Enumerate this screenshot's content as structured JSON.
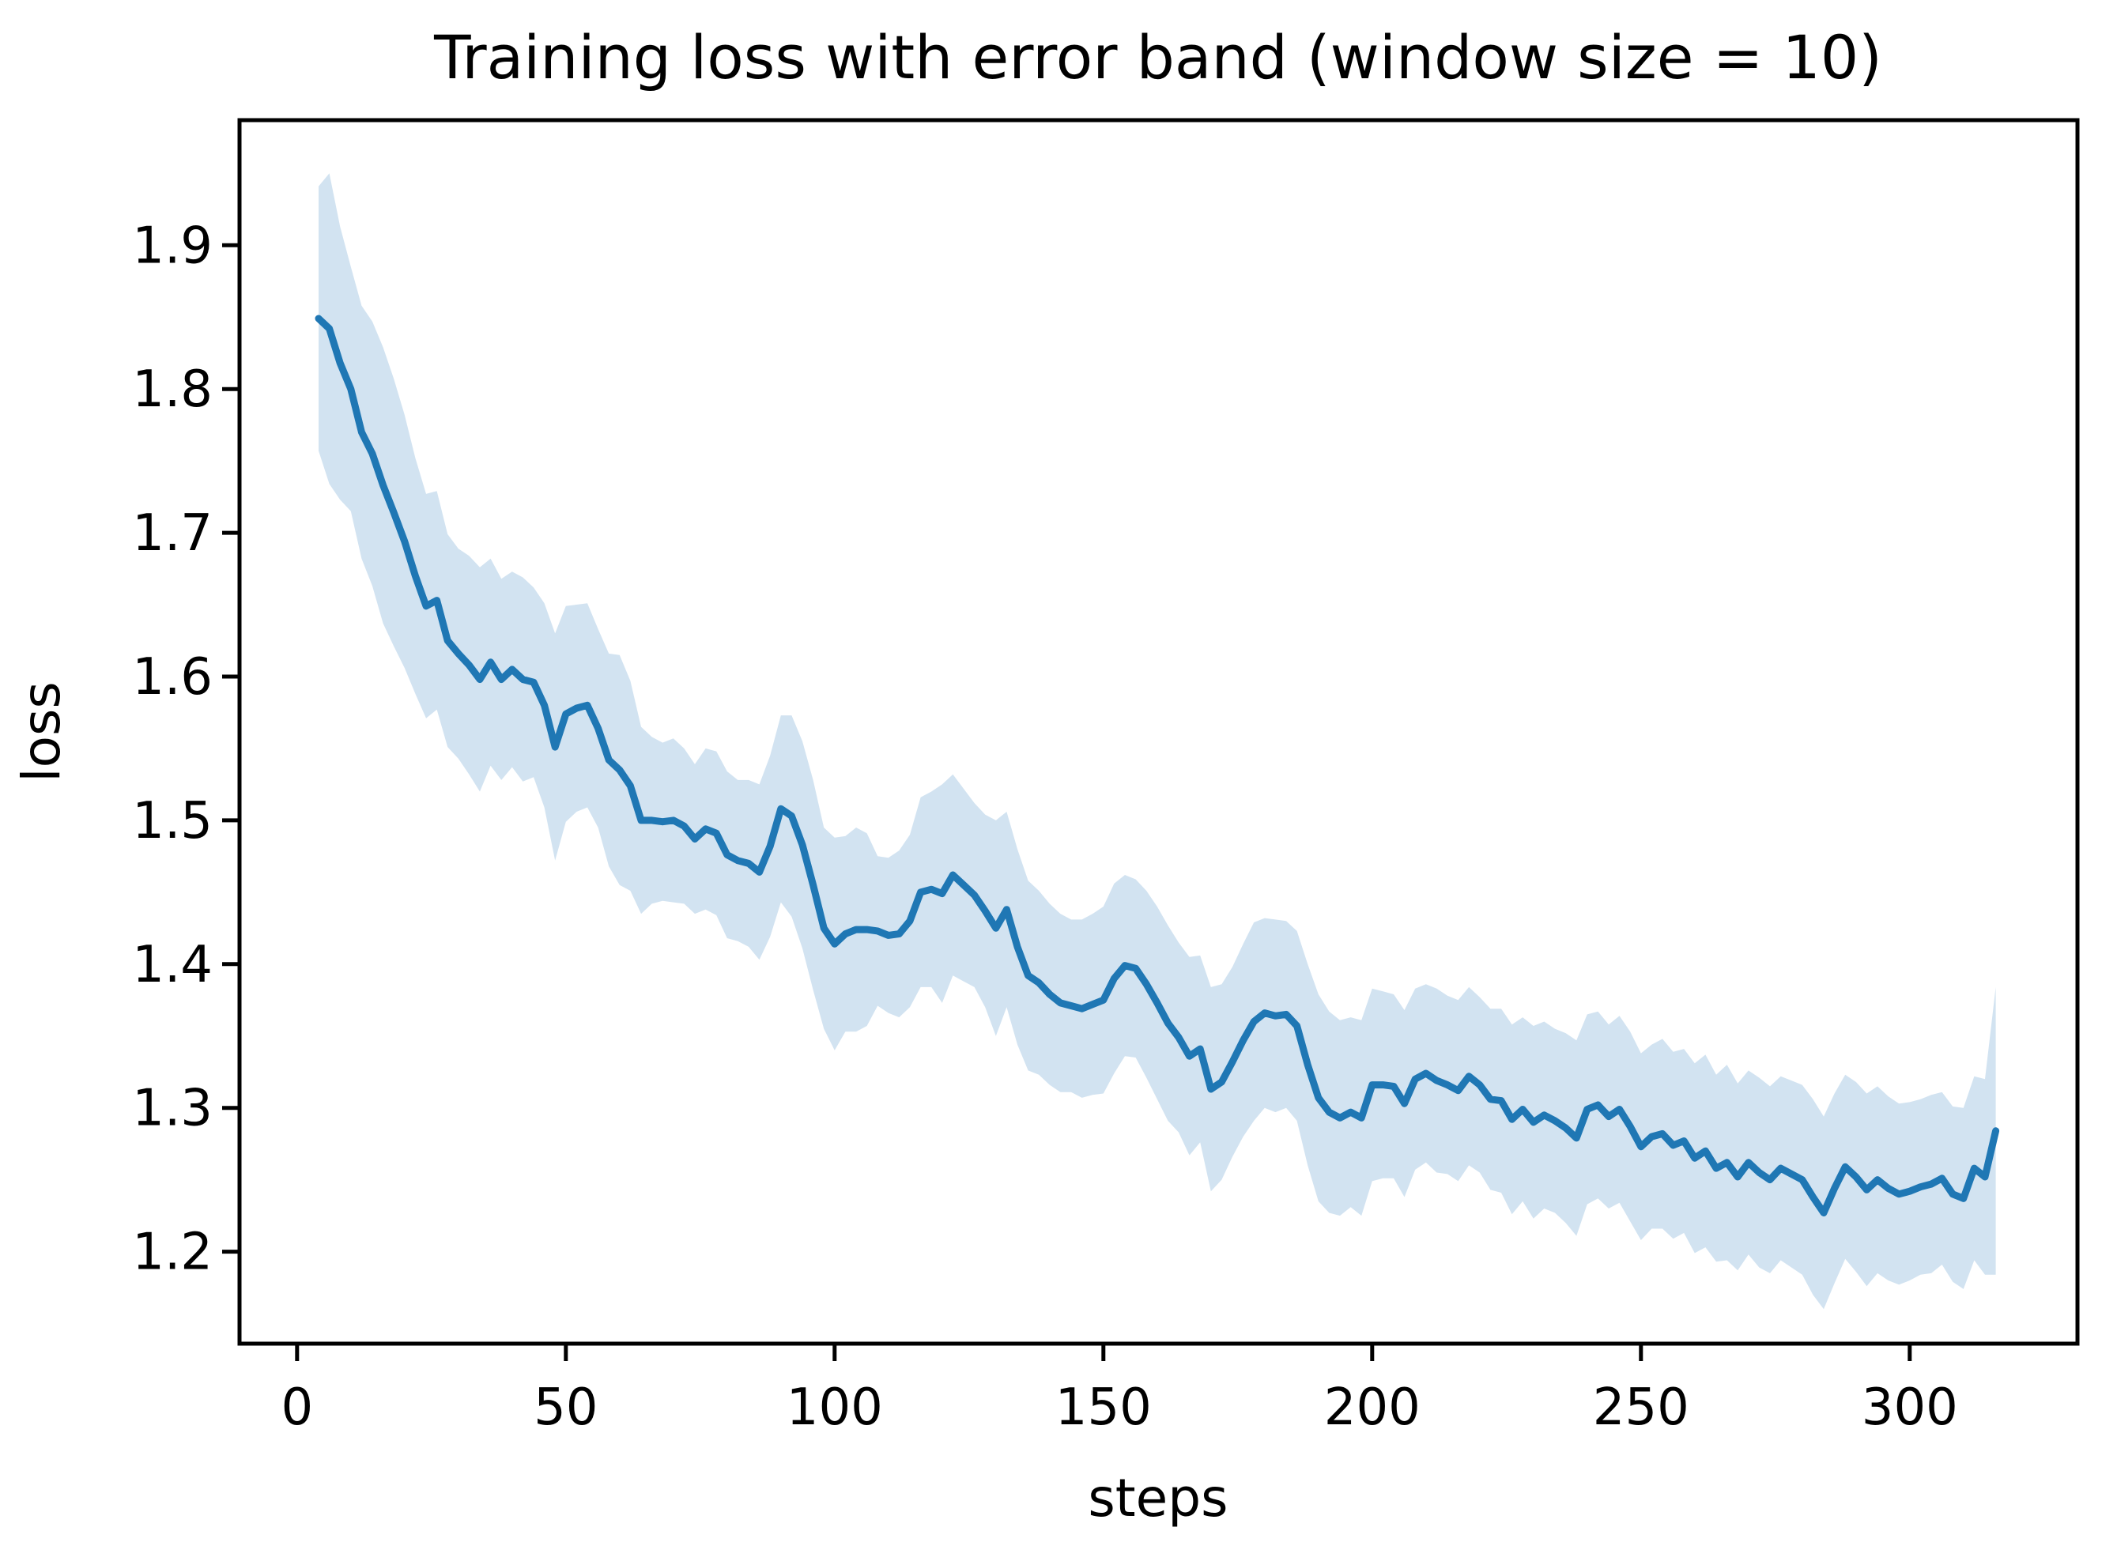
{
  "figure": {
    "title": "Training loss with error band (window size = 10)",
    "xlabel": "steps",
    "ylabel": "loss"
  },
  "chart_data": {
    "type": "line",
    "title": "Training loss with error band (window size = 10)",
    "xlabel": "steps",
    "ylabel": "loss",
    "grid": false,
    "legend": false,
    "line_color": "#1f77b4",
    "band_fill_color": "#d2e3f1",
    "band_meaning": "rolling mean ± 1 std, window size 10",
    "xlim": [
      -10.7,
      331.2
    ],
    "ylim": [
      1.136,
      1.987
    ],
    "xticks": [
      0,
      50,
      100,
      150,
      200,
      250,
      300
    ],
    "yticks": [
      1.2,
      1.3,
      1.4,
      1.5,
      1.6,
      1.7,
      1.8,
      1.9
    ],
    "x": [
      4,
      6,
      8,
      10,
      12,
      14,
      16,
      18,
      20,
      22,
      24,
      26,
      28,
      30,
      32,
      34,
      36,
      38,
      40,
      42,
      44,
      46,
      48,
      50,
      52,
      54,
      56,
      58,
      60,
      62,
      64,
      66,
      68,
      70,
      72,
      74,
      76,
      78,
      80,
      82,
      84,
      86,
      88,
      90,
      92,
      94,
      96,
      98,
      100,
      102,
      104,
      106,
      108,
      110,
      112,
      114,
      116,
      118,
      120,
      122,
      124,
      126,
      128,
      130,
      132,
      134,
      136,
      138,
      140,
      142,
      144,
      146,
      148,
      150,
      152,
      154,
      156,
      158,
      160,
      162,
      164,
      166,
      168,
      170,
      172,
      174,
      176,
      178,
      180,
      182,
      184,
      186,
      188,
      190,
      192,
      194,
      196,
      198,
      200,
      202,
      204,
      206,
      208,
      210,
      212,
      214,
      216,
      218,
      220,
      222,
      224,
      226,
      228,
      230,
      232,
      234,
      236,
      238,
      240,
      242,
      244,
      246,
      248,
      250,
      252,
      254,
      256,
      258,
      260,
      262,
      264,
      266,
      268,
      270,
      272,
      274,
      276,
      278,
      280,
      282,
      284,
      286,
      288,
      290,
      292,
      294,
      296,
      298,
      300,
      302,
      304,
      306,
      308,
      310,
      312,
      314,
      316
    ],
    "mean": [
      1.849,
      1.842,
      1.818,
      1.8,
      1.77,
      1.755,
      1.733,
      1.714,
      1.694,
      1.67,
      1.649,
      1.653,
      1.625,
      1.616,
      1.608,
      1.598,
      1.61,
      1.598,
      1.605,
      1.598,
      1.596,
      1.58,
      1.551,
      1.574,
      1.578,
      1.58,
      1.564,
      1.542,
      1.535,
      1.524,
      1.5,
      1.5,
      1.499,
      1.5,
      1.496,
      1.487,
      1.494,
      1.491,
      1.476,
      1.472,
      1.47,
      1.464,
      1.482,
      1.508,
      1.503,
      1.483,
      1.455,
      1.425,
      1.414,
      1.421,
      1.424,
      1.424,
      1.423,
      1.42,
      1.421,
      1.43,
      1.45,
      1.452,
      1.449,
      1.462,
      1.455,
      1.448,
      1.437,
      1.425,
      1.438,
      1.412,
      1.392,
      1.387,
      1.379,
      1.373,
      1.371,
      1.369,
      1.372,
      1.375,
      1.39,
      1.399,
      1.397,
      1.386,
      1.373,
      1.359,
      1.349,
      1.336,
      1.341,
      1.313,
      1.318,
      1.332,
      1.347,
      1.36,
      1.366,
      1.364,
      1.365,
      1.357,
      1.33,
      1.307,
      1.297,
      1.293,
      1.297,
      1.293,
      1.316,
      1.316,
      1.315,
      1.303,
      1.32,
      1.324,
      1.319,
      1.316,
      1.312,
      1.322,
      1.316,
      1.306,
      1.305,
      1.292,
      1.299,
      1.29,
      1.295,
      1.291,
      1.286,
      1.279,
      1.299,
      1.302,
      1.294,
      1.299,
      1.287,
      1.273,
      1.28,
      1.282,
      1.274,
      1.277,
      1.265,
      1.27,
      1.258,
      1.262,
      1.252,
      1.262,
      1.255,
      1.25,
      1.258,
      1.254,
      1.25,
      1.238,
      1.227,
      1.244,
      1.259,
      1.252,
      1.243,
      1.25,
      1.244,
      1.24,
      1.242,
      1.245,
      1.247,
      1.251,
      1.24,
      1.237,
      1.258,
      1.252,
      1.284
    ],
    "std": [
      0.092,
      0.108,
      0.095,
      0.085,
      0.088,
      0.092,
      0.096,
      0.093,
      0.088,
      0.082,
      0.078,
      0.076,
      0.074,
      0.073,
      0.076,
      0.078,
      0.072,
      0.07,
      0.068,
      0.071,
      0.066,
      0.071,
      0.079,
      0.075,
      0.072,
      0.071,
      0.069,
      0.074,
      0.08,
      0.073,
      0.065,
      0.058,
      0.055,
      0.057,
      0.054,
      0.052,
      0.056,
      0.057,
      0.058,
      0.056,
      0.058,
      0.061,
      0.063,
      0.065,
      0.07,
      0.072,
      0.073,
      0.07,
      0.074,
      0.068,
      0.071,
      0.067,
      0.052,
      0.054,
      0.058,
      0.06,
      0.066,
      0.068,
      0.076,
      0.07,
      0.067,
      0.064,
      0.067,
      0.075,
      0.068,
      0.068,
      0.066,
      0.064,
      0.063,
      0.062,
      0.06,
      0.062,
      0.063,
      0.065,
      0.066,
      0.063,
      0.062,
      0.065,
      0.067,
      0.068,
      0.066,
      0.069,
      0.065,
      0.071,
      0.068,
      0.066,
      0.067,
      0.069,
      0.066,
      0.067,
      0.065,
      0.066,
      0.07,
      0.072,
      0.07,
      0.068,
      0.066,
      0.068,
      0.067,
      0.065,
      0.064,
      0.065,
      0.063,
      0.062,
      0.064,
      0.062,
      0.063,
      0.062,
      0.061,
      0.063,
      0.064,
      0.066,
      0.064,
      0.067,
      0.065,
      0.064,
      0.066,
      0.068,
      0.066,
      0.065,
      0.064,
      0.065,
      0.066,
      0.065,
      0.064,
      0.066,
      0.065,
      0.064,
      0.066,
      0.067,
      0.065,
      0.068,
      0.065,
      0.064,
      0.066,
      0.065,
      0.064,
      0.065,
      0.066,
      0.068,
      0.067,
      0.066,
      0.064,
      0.066,
      0.067,
      0.065,
      0.064,
      0.063,
      0.062,
      0.061,
      0.062,
      0.06,
      0.061,
      0.063,
      0.064,
      0.068,
      0.1
    ]
  }
}
